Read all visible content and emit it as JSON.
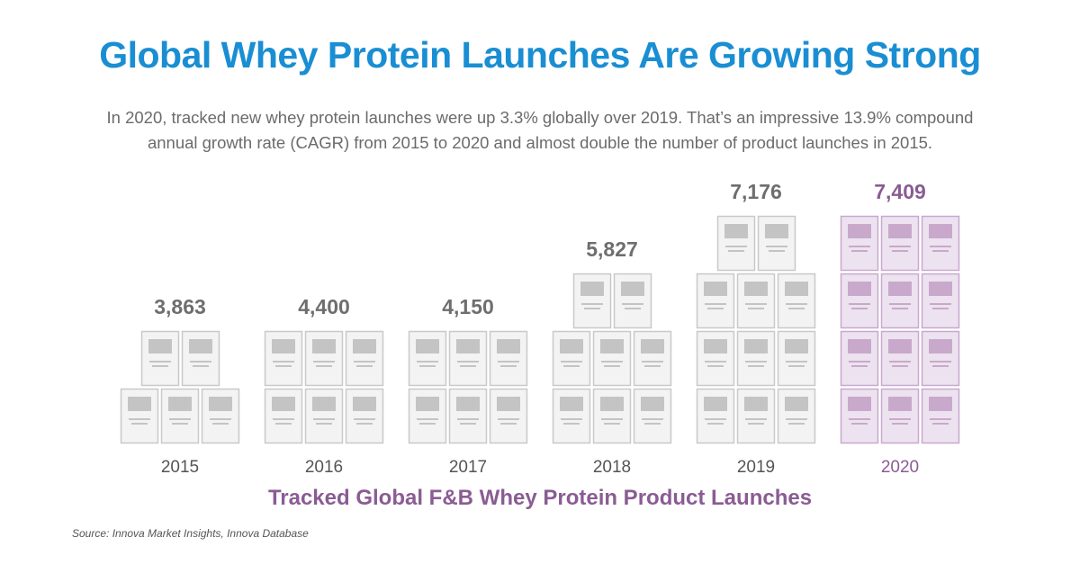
{
  "header": {
    "title": "Global Whey Protein Launches Are Growing Strong",
    "subtitle_line1": "In 2020, tracked new whey protein launches were up 3.3% globally over 2019. That’s an impressive 13.9% compound",
    "subtitle_line2": "annual growth rate (CAGR) from 2015 to 2020 and almost double the number of product launches in 2015."
  },
  "footer": {
    "chart_label": "Tracked Global F&B Whey Protein Product Launches",
    "source": "Source: Innova Market Insights, Innova Database"
  },
  "colors": {
    "title": "#1a8ed3",
    "subtitle": "#6b6b6b",
    "default_value": "#6e6e6e",
    "highlight": "#8a5c93",
    "box_fill": "#f3f3f3",
    "box_stroke": "#c9c9c9",
    "box_image": "#c4c4c4",
    "highlight_box_fill": "#ede2ef",
    "highlight_box_stroke": "#c9a8cf",
    "highlight_box_image": "#c8a9cc"
  },
  "chart_data": {
    "type": "bar",
    "categories": [
      "2015",
      "2016",
      "2017",
      "2018",
      "2019",
      "2020"
    ],
    "values": [
      3863,
      4400,
      4150,
      5827,
      7176,
      7409
    ],
    "value_labels": [
      "3,863",
      "4,400",
      "4,150",
      "5,827",
      "7,176",
      "7,409"
    ],
    "icon_counts": [
      5,
      6,
      6,
      8,
      11,
      12
    ],
    "highlight_category": "2020",
    "title": "Tracked Global F&B Whey Protein Product Launches",
    "xlabel": "",
    "ylabel": ""
  }
}
